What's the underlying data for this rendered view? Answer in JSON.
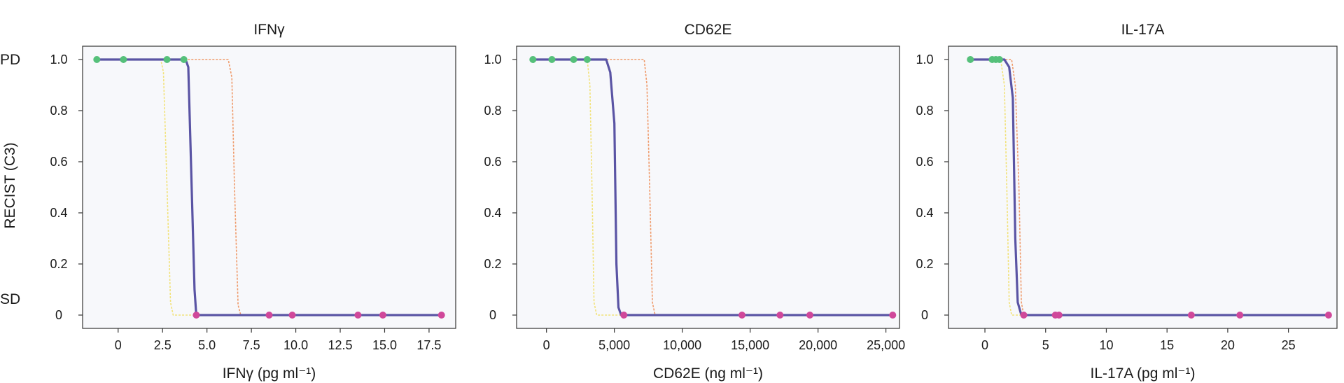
{
  "figure": {
    "y_axis_label": "RECIST (C3)",
    "category_labels": {
      "top": "PD",
      "bottom": "SD"
    },
    "colors": {
      "main_curve": "#5a54a4",
      "bound_lower": "#f2e27a",
      "bound_upper": "#ef9a6a",
      "pd_point": "#55c07a",
      "sd_point": "#d0489a"
    }
  },
  "chart_data": [
    {
      "type": "line",
      "title": "IFNγ",
      "xlabel": "IFNγ (pg ml⁻¹)",
      "ylabel": "RECIST (C3)",
      "xlim": [
        -2,
        19
      ],
      "ylim": [
        0,
        1
      ],
      "xticks": [
        0,
        2.5,
        5,
        7.5,
        10,
        12.5,
        15,
        17.5
      ],
      "xtick_labels": [
        "0",
        "2.5",
        "5.0",
        "7.5",
        "10.0",
        "12.5",
        "15.0",
        "17.5"
      ],
      "yticks": [
        0,
        0.2,
        0.4,
        0.6,
        0.8,
        1.0
      ],
      "ytick_labels": [
        "0",
        "0.2",
        "0.4",
        "0.6",
        "0.8",
        "1.0"
      ],
      "series": [
        {
          "role": "main",
          "x": [
            -1.2,
            3.8,
            3.95,
            4.1,
            4.3,
            4.4,
            18.2
          ],
          "y": [
            1,
            1,
            0.97,
            0.6,
            0.1,
            0,
            0
          ]
        },
        {
          "role": "lower",
          "x": [
            -1.2,
            2.4,
            2.55,
            2.75,
            2.95,
            3.1,
            18.2
          ],
          "y": [
            1,
            1,
            0.95,
            0.5,
            0.05,
            0,
            0
          ]
        },
        {
          "role": "upper",
          "x": [
            -1.2,
            6.2,
            6.4,
            6.55,
            6.75,
            6.9,
            18.2
          ],
          "y": [
            1,
            1,
            0.93,
            0.5,
            0.04,
            0,
            0
          ]
        }
      ],
      "points_pd": [
        -1.2,
        0.3,
        2.75,
        3.7
      ],
      "points_sd": [
        4.4,
        8.5,
        9.8,
        13.5,
        14.9,
        18.2
      ]
    },
    {
      "type": "line",
      "title": "CD62E",
      "xlabel": "CD62E (ng ml⁻¹)",
      "ylabel": "",
      "xlim": [
        -2200,
        26000
      ],
      "ylim": [
        0,
        1
      ],
      "xticks": [
        0,
        5000,
        10000,
        15000,
        20000,
        25000
      ],
      "xtick_labels": [
        "0",
        "5,000",
        "10,000",
        "15,000",
        "20,000",
        "25,000"
      ],
      "yticks": [
        0,
        0.2,
        0.4,
        0.6,
        0.8,
        1.0
      ],
      "ytick_labels": [
        "0",
        "0.2",
        "0.4",
        "0.6",
        "0.8",
        "1.0"
      ],
      "series": [
        {
          "role": "main",
          "x": [
            -1000,
            4400,
            4700,
            5000,
            5150,
            5300,
            5500,
            25500
          ],
          "y": [
            1,
            1,
            0.95,
            0.75,
            0.2,
            0.03,
            0,
            0
          ]
        },
        {
          "role": "lower",
          "x": [
            -1000,
            3000,
            3200,
            3350,
            3500,
            3700,
            25500
          ],
          "y": [
            1,
            1,
            0.9,
            0.5,
            0.05,
            0,
            0
          ]
        },
        {
          "role": "upper",
          "x": [
            -1000,
            7200,
            7400,
            7600,
            7800,
            8000,
            25500
          ],
          "y": [
            1,
            1,
            0.9,
            0.5,
            0.05,
            0,
            0
          ]
        }
      ],
      "points_pd": [
        -1000,
        400,
        2000,
        3000
      ],
      "points_sd": [
        5700,
        14400,
        17200,
        19400,
        25500
      ]
    },
    {
      "type": "line",
      "title": "IL-17A",
      "xlabel": "IL-17A (pg ml⁻¹)",
      "ylabel": "",
      "xlim": [
        -3,
        29
      ],
      "ylim": [
        0,
        1
      ],
      "xticks": [
        0,
        5,
        10,
        15,
        20,
        25
      ],
      "xtick_labels": [
        "0",
        "5",
        "10",
        "15",
        "20",
        "25"
      ],
      "yticks": [
        0,
        0.2,
        0.4,
        0.6,
        0.8,
        1.0
      ],
      "ytick_labels": [
        "0",
        "0.2",
        "0.4",
        "0.6",
        "0.8",
        "1.0"
      ],
      "series": [
        {
          "role": "main",
          "x": [
            -1.2,
            1.6,
            2.0,
            2.3,
            2.5,
            2.7,
            3.0,
            28.3
          ],
          "y": [
            1,
            1,
            0.97,
            0.85,
            0.3,
            0.05,
            0,
            0
          ]
        },
        {
          "role": "lower",
          "x": [
            -1.2,
            1.3,
            1.6,
            1.8,
            2.0,
            2.2,
            28.3
          ],
          "y": [
            1,
            1,
            0.9,
            0.5,
            0.05,
            0,
            0
          ]
        },
        {
          "role": "upper",
          "x": [
            -1.2,
            2.2,
            2.5,
            2.8,
            3.0,
            3.2,
            28.3
          ],
          "y": [
            1,
            1,
            0.9,
            0.5,
            0.05,
            0,
            0
          ]
        }
      ],
      "points_pd": [
        -1.2,
        0.6,
        0.9,
        1.2
      ],
      "points_sd": [
        3.2,
        5.8,
        6.1,
        17.0,
        21.0,
        28.3
      ]
    }
  ]
}
